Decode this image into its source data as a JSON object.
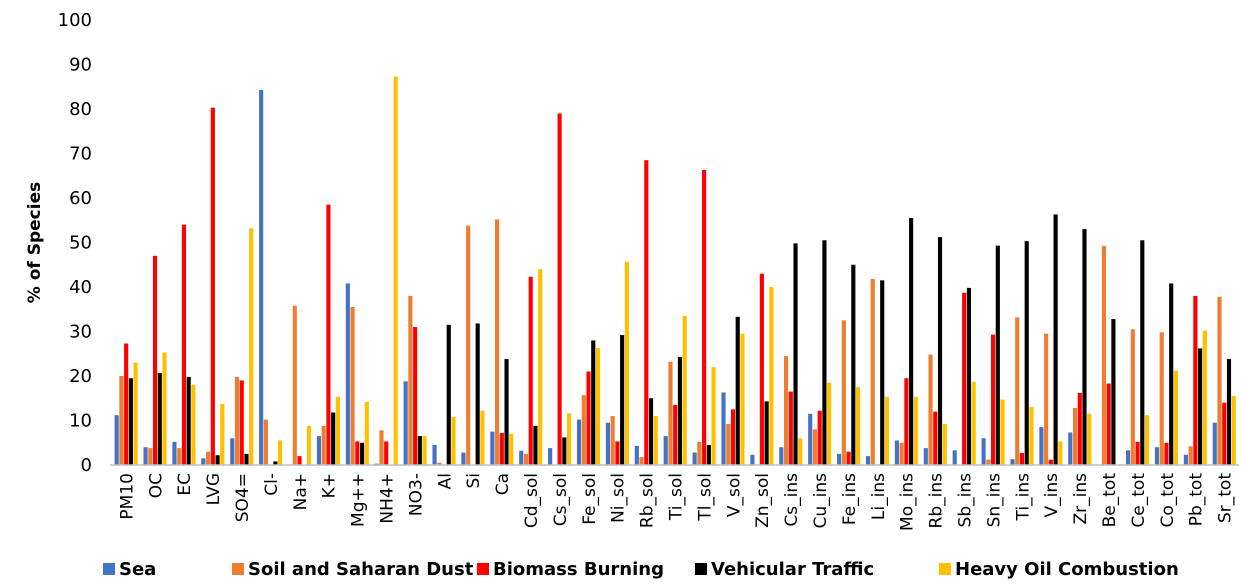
{
  "chart_data": {
    "type": "bar",
    "title": "",
    "xlabel": "",
    "ylabel": "% of Species",
    "ylim": [
      0,
      100
    ],
    "yticks": [
      0,
      10,
      20,
      30,
      40,
      50,
      60,
      70,
      80,
      90,
      100
    ],
    "grid": false,
    "legend_position": "bottom",
    "categories": [
      "PM10",
      "OC",
      "EC",
      "LVG",
      "SO4=",
      "Cl-",
      "Na+",
      "K+",
      "Mg++",
      "NH4+",
      "NO3-",
      "Al",
      "Si",
      "Ca",
      "Cd_sol",
      "Cs_sol",
      "Fe_sol",
      "Ni_sol",
      "Rb_sol",
      "Ti_sol",
      "Tl_sol",
      "V_sol",
      "Zn_sol",
      "Cs_ins",
      "Cu_ins",
      "Fe_ins",
      "Li_ins",
      "Mo_ins",
      "Rb_ins",
      "Sb_ins",
      "Sn_ins",
      "Ti_ins",
      "V_ins",
      "Zr_ins",
      "Be_tot",
      "Ce_tot",
      "Co_tot",
      "Pb_tot",
      "Sr_tot"
    ],
    "series": [
      {
        "name": "Sea",
        "color": "#4472C4",
        "values": [
          11.2,
          4,
          5.2,
          1.5,
          6,
          84.3,
          0,
          6.5,
          40.8,
          0.3,
          18.8,
          4.5,
          2.8,
          7.5,
          3.2,
          3.8,
          10.2,
          9.5,
          4.3,
          6.5,
          2.8,
          16.3,
          2.3,
          4,
          11.5,
          2.5,
          2,
          5.5,
          3.8,
          3.3,
          6,
          1.3,
          8.5,
          7.3,
          0,
          3.3,
          4,
          2.3,
          9.5
        ]
      },
      {
        "name": "Soil and Saharan Dust",
        "color": "#ED7D31",
        "values": [
          20,
          3.8,
          3.8,
          3,
          19.8,
          10.2,
          35.8,
          8.8,
          35.5,
          7.8,
          38,
          0.5,
          53.8,
          55.2,
          2.5,
          0,
          15.7,
          11,
          1.8,
          23.2,
          5.2,
          9.2,
          0,
          24.5,
          8,
          32.5,
          41.8,
          5,
          24.8,
          0,
          1.2,
          33.2,
          29.5,
          12.8,
          49.2,
          30.5,
          29.8,
          4.2,
          37.8
        ]
      },
      {
        "name": "Biomass Burning",
        "color": "#FF0000",
        "values": [
          27.3,
          47,
          54,
          80.3,
          19,
          0,
          2,
          58.5,
          5.3,
          5.3,
          31,
          0,
          0,
          7.2,
          42.3,
          79,
          21,
          5.3,
          68.5,
          13.5,
          66.3,
          12.5,
          43,
          16.5,
          12.2,
          3,
          0,
          19.5,
          12,
          38.7,
          29.3,
          2.7,
          1.2,
          16.2,
          18.3,
          5.2,
          5,
          38,
          14
        ]
      },
      {
        "name": "Vehicular Traffic",
        "color": "#000000",
        "values": [
          19.5,
          20.7,
          19.8,
          2.2,
          2.5,
          0.8,
          0,
          11.8,
          5,
          0,
          6.5,
          31.5,
          31.8,
          23.8,
          8.8,
          6.2,
          28,
          29.2,
          15,
          24.3,
          4.5,
          33.3,
          14.3,
          49.8,
          50.5,
          45,
          41.5,
          55.5,
          51.2,
          39.8,
          49.3,
          50.3,
          56.3,
          53,
          32.8,
          50.5,
          40.8,
          26.2,
          23.8
        ]
      },
      {
        "name": "Heavy Oil Combustion",
        "color": "#FFC000",
        "values": [
          23,
          25.3,
          18,
          13.7,
          53.2,
          5.5,
          8.8,
          15.3,
          14.2,
          87.3,
          6.5,
          10.8,
          12.2,
          7,
          44,
          11.6,
          26.3,
          45.7,
          11,
          33.5,
          22,
          29.5,
          40,
          6,
          18.5,
          17.5,
          15.3,
          15.3,
          9.2,
          18.7,
          14.7,
          13,
          5.3,
          11.5,
          0,
          11.2,
          21.2,
          30.2,
          15.5
        ]
      }
    ]
  }
}
